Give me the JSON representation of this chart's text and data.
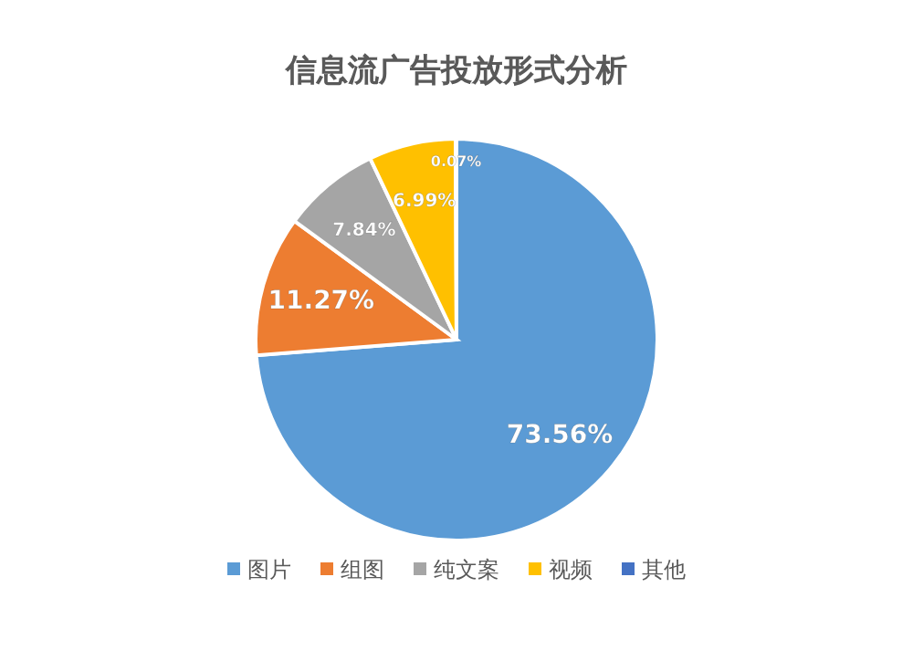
{
  "chart_data": {
    "type": "pie",
    "title": "信息流广告投放形式分析",
    "categories": [
      "图片",
      "组图",
      "纯文案",
      "视频",
      "其他"
    ],
    "values": [
      73.56,
      11.27,
      7.84,
      6.99,
      0.07
    ],
    "value_labels": [
      "73.56%",
      "11.27%",
      "7.84%",
      "6.99%",
      "0.07%"
    ],
    "colors": [
      "#5b9bd5",
      "#ed7d31",
      "#a5a5a5",
      "#ffc000",
      "#4472c4"
    ],
    "legend": "bottom"
  }
}
